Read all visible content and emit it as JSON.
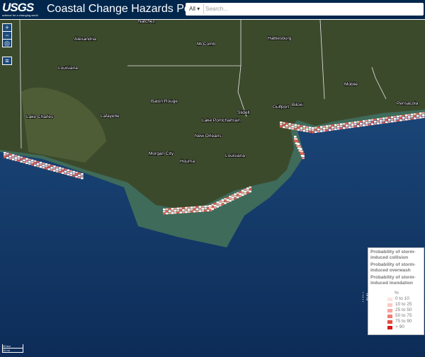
{
  "header": {
    "logo": "USGS",
    "tagline": "science for a changing world",
    "title": "Coastal Change Hazards Portal",
    "search_scope": "All",
    "search_placeholder": "Search..."
  },
  "map": {
    "labels": [
      "Natchez",
      "Alexandria",
      "Louisiana",
      "McComb",
      "Hattiesburg",
      "Baton Rouge",
      "Lafayette",
      "Lake Charles",
      "New Orleans",
      "Lake Pontchartrain",
      "Slidell",
      "Gulfport",
      "Biloxi",
      "Mobile",
      "Pensacola",
      "Morgan City",
      "Houma",
      "Louisiana"
    ],
    "scale": [
      "20 km",
      "20 mi"
    ]
  },
  "legend": {
    "layers": [
      "Probability of storm-induced collision",
      "Probability of storm-induced overwash",
      "Probability of storm-induced inundation"
    ],
    "unit": "%",
    "classes": [
      "0 to 10",
      "10 to 25",
      "25 to 50",
      "50 to 75",
      "75 to 90",
      "> 90"
    ]
  }
}
